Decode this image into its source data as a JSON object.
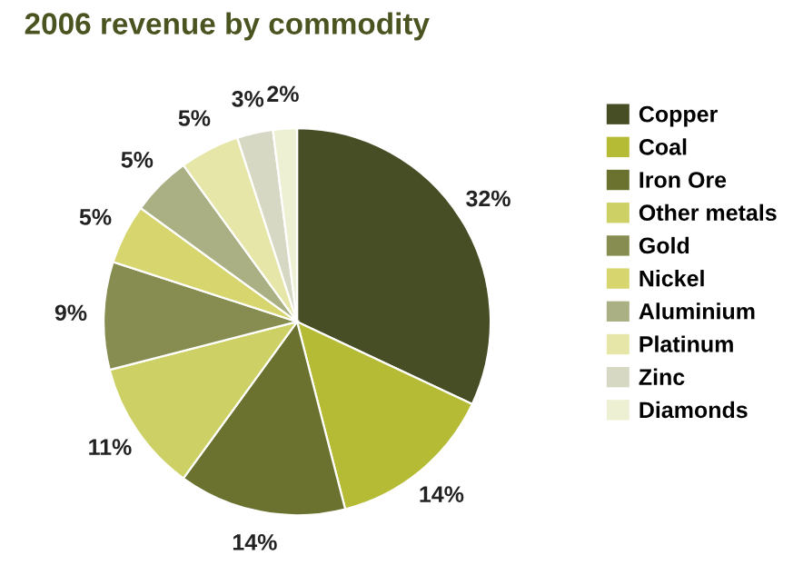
{
  "chart_data": {
    "type": "pie",
    "title": "2006 revenue by commodity",
    "categories": [
      "Copper",
      "Coal",
      "Iron Ore",
      "Other metals",
      "Gold",
      "Nickel",
      "Aluminium",
      "Platinum",
      "Zinc",
      "Diamonds"
    ],
    "values": [
      32,
      14,
      14,
      11,
      9,
      5,
      5,
      5,
      3,
      2
    ],
    "value_labels": [
      "32%",
      "14%",
      "14%",
      "11%",
      "9%",
      "5%",
      "5%",
      "5%",
      "3%",
      "2%"
    ],
    "colors": [
      "#474d24",
      "#b5bb34",
      "#6b7230",
      "#cdd064",
      "#878d50",
      "#d6d56e",
      "#aab084",
      "#e6e6a8",
      "#d6d8c4",
      "#eef0d4"
    ],
    "legend": "right"
  }
}
